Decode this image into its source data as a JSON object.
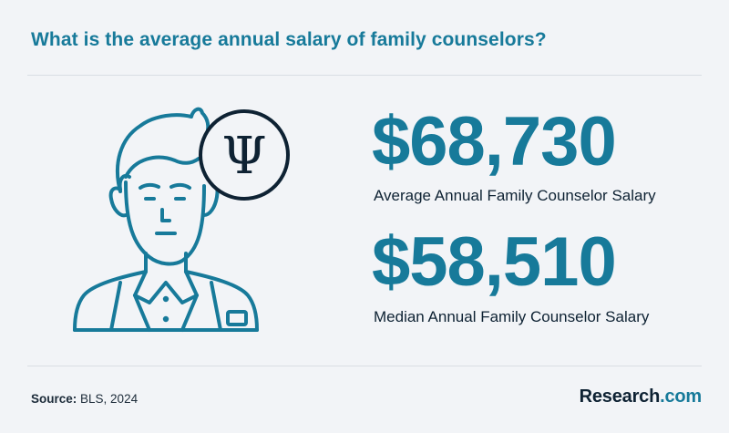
{
  "header": {
    "title": "What is the average annual salary of family counselors?"
  },
  "stats": {
    "average": {
      "value": "$68,730",
      "label": "Average Annual Family Counselor Salary"
    },
    "median": {
      "value": "$58,510",
      "label": "Median Annual Family Counselor Salary"
    }
  },
  "footer": {
    "source_label": "Source:",
    "source_text": "BLS, 2024",
    "brand_name": "Research",
    "brand_suffix": ".com"
  },
  "illustration": {
    "person_icon": "counselor-person-icon",
    "symbol_icon": "psi-symbol-icon",
    "symbol_glyph": "Ψ"
  },
  "colors": {
    "accent": "#177a9a",
    "dark": "#0e2233",
    "background": "#f2f4f7"
  }
}
